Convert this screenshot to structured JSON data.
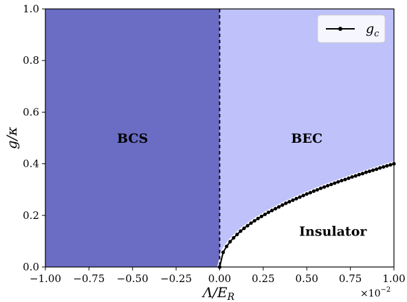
{
  "chart_data": {
    "type": "line",
    "xlabel": "Λ/E",
    "xlabel_sub": "R",
    "ylabel": "g/κ",
    "xlim": [
      -1.0,
      1.0
    ],
    "ylim": [
      0.0,
      1.0
    ],
    "x_scale_label": "×10",
    "x_scale_exponent": "−2",
    "xticks": [
      "−1.00",
      "−0.75",
      "−0.50",
      "−0.25",
      "0.00",
      "0.25",
      "0.50",
      "0.75",
      "1.00"
    ],
    "xtick_values": [
      -1.0,
      -0.75,
      -0.5,
      -0.25,
      0.0,
      0.25,
      0.5,
      0.75,
      1.0
    ],
    "yticks": [
      "0.0",
      "0.2",
      "0.4",
      "0.6",
      "0.8",
      "1.0"
    ],
    "ytick_values": [
      0.0,
      0.2,
      0.4,
      0.6,
      0.8,
      1.0
    ],
    "legend_position": "top-right",
    "series": [
      {
        "name": "g",
        "name_sub": "c",
        "color": "#000000",
        "x": [
          0.0,
          0.02,
          0.04,
          0.06,
          0.08,
          0.1,
          0.12,
          0.14,
          0.16,
          0.18,
          0.2,
          0.22,
          0.24,
          0.26,
          0.28,
          0.3,
          0.32,
          0.34,
          0.36,
          0.38,
          0.4,
          0.42,
          0.44,
          0.46,
          0.48,
          0.5,
          0.52,
          0.54,
          0.56,
          0.58,
          0.6,
          0.62,
          0.64,
          0.66,
          0.68,
          0.7,
          0.72,
          0.74,
          0.76,
          0.78,
          0.8,
          0.82,
          0.84,
          0.86,
          0.88,
          0.9,
          0.92,
          0.94,
          0.96,
          0.98,
          1.0
        ],
        "y": [
          0.0,
          0.057,
          0.08,
          0.098,
          0.113,
          0.126,
          0.139,
          0.15,
          0.16,
          0.17,
          0.179,
          0.188,
          0.196,
          0.204,
          0.212,
          0.219,
          0.226,
          0.233,
          0.24,
          0.247,
          0.253,
          0.259,
          0.265,
          0.271,
          0.277,
          0.283,
          0.288,
          0.294,
          0.299,
          0.305,
          0.31,
          0.315,
          0.32,
          0.325,
          0.33,
          0.335,
          0.339,
          0.344,
          0.349,
          0.353,
          0.358,
          0.362,
          0.367,
          0.371,
          0.375,
          0.379,
          0.384,
          0.388,
          0.392,
          0.396,
          0.4
        ]
      }
    ],
    "boundary_x": 0.0,
    "regions": [
      {
        "name": "BCS",
        "color": "#6a6dc3"
      },
      {
        "name": "BEC",
        "color": "#bfc1fa"
      },
      {
        "name": "Insulator",
        "color": "#ffffff"
      }
    ]
  }
}
